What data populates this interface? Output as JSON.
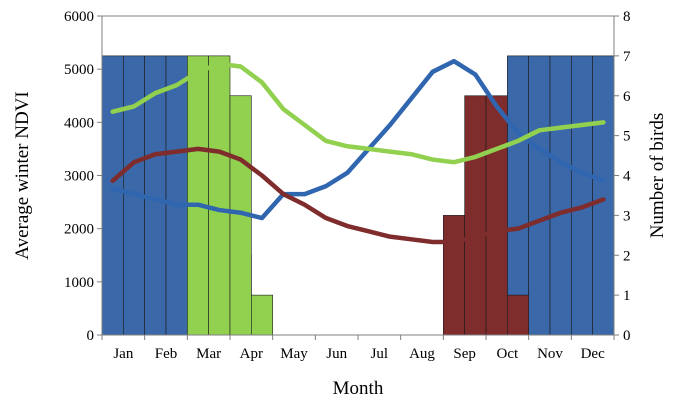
{
  "chart_data": {
    "type": "bar",
    "xlabel": "Month",
    "ylabel": "Average winter NDVI",
    "y2label": "Number of birds",
    "ylim": [
      0,
      6000
    ],
    "y2lim": [
      0,
      8
    ],
    "yticks": [
      0,
      1000,
      2000,
      3000,
      4000,
      5000,
      6000
    ],
    "y2ticks": [
      0,
      1,
      2,
      3,
      4,
      5,
      6,
      7,
      8
    ],
    "months": [
      "Jan",
      "Feb",
      "Mar",
      "Apr",
      "May",
      "Jun",
      "Jul",
      "Aug",
      "Sep",
      "Oct",
      "Nov",
      "Dec"
    ],
    "bar_series": [
      {
        "color": "#3a68a8",
        "axis": "right",
        "bars": [
          {
            "x": 0.0,
            "value": 7
          },
          {
            "x": 0.5,
            "value": 7
          },
          {
            "x": 1.0,
            "value": 7
          },
          {
            "x": 1.5,
            "value": 7
          },
          {
            "x": 2.0,
            "value": 6
          },
          {
            "x": 2.5,
            "value": 5
          },
          {
            "x": 3.0,
            "value": 2
          },
          {
            "x": 9.5,
            "value": 7
          },
          {
            "x": 10.0,
            "value": 7
          },
          {
            "x": 10.5,
            "value": 7
          },
          {
            "x": 11.0,
            "value": 7
          },
          {
            "x": 11.5,
            "value": 7
          }
        ]
      },
      {
        "color": "#92d050",
        "axis": "right",
        "bars": [
          {
            "x": 2.0,
            "value": 7
          },
          {
            "x": 2.5,
            "value": 7
          },
          {
            "x": 3.0,
            "value": 6
          },
          {
            "x": 3.5,
            "value": 1
          }
        ]
      },
      {
        "color": "#7f2c2c",
        "axis": "right",
        "bars": [
          {
            "x": 8.0,
            "value": 3
          },
          {
            "x": 8.5,
            "value": 6
          },
          {
            "x": 9.0,
            "value": 6
          },
          {
            "x": 9.5,
            "value": 1
          }
        ]
      }
    ],
    "series": [
      {
        "color": "#3066b0",
        "axis": "left",
        "points": [
          [
            0.0,
            2750
          ],
          [
            0.5,
            2650
          ],
          [
            1.0,
            2550
          ],
          [
            1.5,
            2450
          ],
          [
            2.0,
            2450
          ],
          [
            2.5,
            2350
          ],
          [
            3.0,
            2300
          ],
          [
            3.5,
            2200
          ],
          [
            4.0,
            2650
          ],
          [
            4.5,
            2650
          ],
          [
            5.0,
            2800
          ],
          [
            5.5,
            3050
          ],
          [
            6.0,
            3500
          ],
          [
            6.5,
            3950
          ],
          [
            7.0,
            4450
          ],
          [
            7.5,
            4950
          ],
          [
            8.0,
            5150
          ],
          [
            8.5,
            4900
          ],
          [
            9.0,
            4300
          ],
          [
            9.5,
            3800
          ],
          [
            10.0,
            3500
          ],
          [
            10.5,
            3250
          ],
          [
            11.0,
            3050
          ],
          [
            11.5,
            2900
          ]
        ]
      },
      {
        "color": "#92d050",
        "axis": "left",
        "points": [
          [
            0.0,
            4200
          ],
          [
            0.5,
            4300
          ],
          [
            1.0,
            4550
          ],
          [
            1.5,
            4700
          ],
          [
            2.0,
            4950
          ],
          [
            2.5,
            5100
          ],
          [
            3.0,
            5050
          ],
          [
            3.5,
            4750
          ],
          [
            4.0,
            4250
          ],
          [
            4.5,
            3950
          ],
          [
            5.0,
            3650
          ],
          [
            5.5,
            3550
          ],
          [
            6.0,
            3500
          ],
          [
            6.5,
            3450
          ],
          [
            7.0,
            3400
          ],
          [
            7.5,
            3300
          ],
          [
            8.0,
            3250
          ],
          [
            8.5,
            3350
          ],
          [
            9.0,
            3500
          ],
          [
            9.5,
            3650
          ],
          [
            10.0,
            3850
          ],
          [
            10.5,
            3900
          ],
          [
            11.0,
            3950
          ],
          [
            11.5,
            4000
          ]
        ]
      },
      {
        "color": "#7f2c2c",
        "axis": "left",
        "points": [
          [
            0.0,
            2900
          ],
          [
            0.5,
            3250
          ],
          [
            1.0,
            3400
          ],
          [
            1.5,
            3450
          ],
          [
            2.0,
            3500
          ],
          [
            2.5,
            3450
          ],
          [
            3.0,
            3300
          ],
          [
            3.5,
            3000
          ],
          [
            4.0,
            2650
          ],
          [
            4.5,
            2450
          ],
          [
            5.0,
            2200
          ],
          [
            5.5,
            2050
          ],
          [
            6.0,
            1950
          ],
          [
            6.5,
            1850
          ],
          [
            7.0,
            1800
          ],
          [
            7.5,
            1750
          ],
          [
            8.0,
            1750
          ],
          [
            8.5,
            1850
          ],
          [
            9.0,
            1950
          ],
          [
            9.5,
            2000
          ],
          [
            10.0,
            2150
          ],
          [
            10.5,
            2300
          ],
          [
            11.0,
            2400
          ],
          [
            11.5,
            2550
          ]
        ]
      }
    ],
    "grid": false
  }
}
